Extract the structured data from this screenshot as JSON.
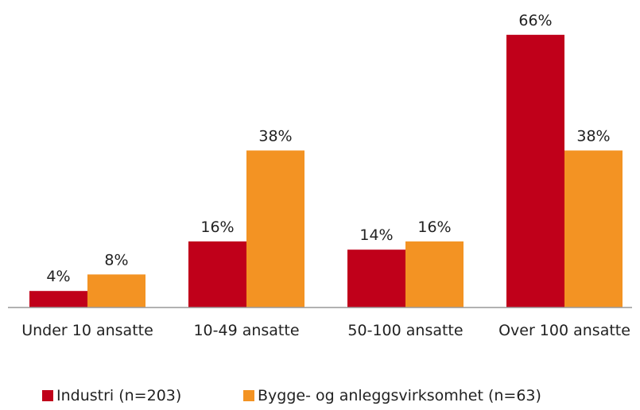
{
  "chart_data": {
    "type": "bar",
    "categories": [
      "Under 10 ansatte",
      "10-49 ansatte",
      "50-100 ansatte",
      "Over 100 ansatte"
    ],
    "series": [
      {
        "name": "Industri (n=203)",
        "color": "#c0001a",
        "values": [
          4,
          16,
          14,
          66
        ],
        "value_labels": [
          "4%",
          "16%",
          "14%",
          "66%"
        ]
      },
      {
        "name": "Bygge- og anleggsvirksomhet (n=63)",
        "color": "#f39323",
        "values": [
          8,
          38,
          16,
          38
        ],
        "value_labels": [
          "8%",
          "38%",
          "16%",
          "38%"
        ]
      }
    ],
    "grid": false
  }
}
